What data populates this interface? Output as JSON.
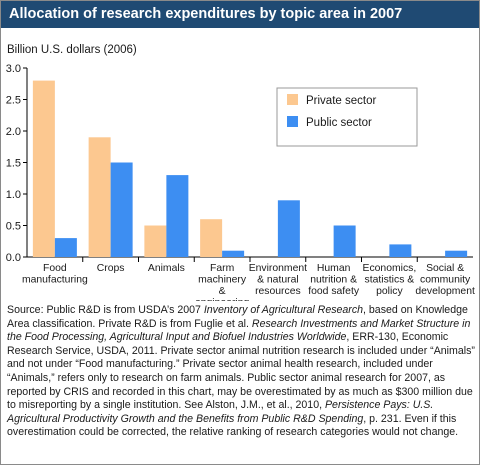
{
  "title": "Allocation of research expenditures by topic area in 2007",
  "chart_data": {
    "type": "bar",
    "ylabel": "Billion U.S. dollars (2006)",
    "ylim": [
      0,
      3.0
    ],
    "yticks": [
      "0.0",
      "0.5",
      "1.0",
      "1.5",
      "2.0",
      "2.5",
      "3.0"
    ],
    "grid": false,
    "legend_position": "top-right",
    "categories": [
      [
        "Food",
        "manufacturing"
      ],
      [
        "Crops"
      ],
      [
        "Animals"
      ],
      [
        "Farm",
        "machinery",
        "&",
        "engineering"
      ],
      [
        "Environment",
        "& natural",
        "resources"
      ],
      [
        "Human",
        "nutrition &",
        "food safety"
      ],
      [
        "Economics,",
        "statistics &",
        "policy"
      ],
      [
        "Social &",
        "community",
        "development"
      ]
    ],
    "series": [
      {
        "name": "Private sector",
        "color": "#fcc890",
        "values": [
          2.8,
          1.9,
          0.5,
          0.6,
          0,
          0,
          0,
          0
        ]
      },
      {
        "name": "Public sector",
        "color": "#3d8ef2",
        "values": [
          0.3,
          1.5,
          1.3,
          0.1,
          0.9,
          0.5,
          0.2,
          0.1
        ]
      }
    ]
  },
  "source": {
    "parts": [
      {
        "t": "Source: Public R&D is from USDA’s 2007 ",
        "i": false
      },
      {
        "t": "Inventory of Agricultural Research",
        "i": true
      },
      {
        "t": ", based on Knowledge Area classification. Private R&D is from Fuglie et al. ",
        "i": false
      },
      {
        "t": "Research Investments and Market Structure in the Food Processing, Agricultural Input and Biofuel Industries Worldwide",
        "i": true
      },
      {
        "t": ", ERR-130, Economic Research Service, USDA, 2011. Private sector animal nutrition research is included under “Animals” and not under “Food manufacturing.” Private sector animal health research, included under “Animals,” refers only to research on farm animals. Public sector animal research for 2007, as reported by CRIS and recorded in this chart, may be overestimated by as much as $300 million due to misreporting by a single institution. See Alston, J.M., et al., 2010, ",
        "i": false
      },
      {
        "t": "Persistence Pays: U.S. Agricultural Productivity Growth and the Benefits from Public R&D Spending",
        "i": true
      },
      {
        "t": ", p. 231. Even if this overestimation could be corrected, the relative ranking of research categories would not change.",
        "i": false
      }
    ]
  }
}
